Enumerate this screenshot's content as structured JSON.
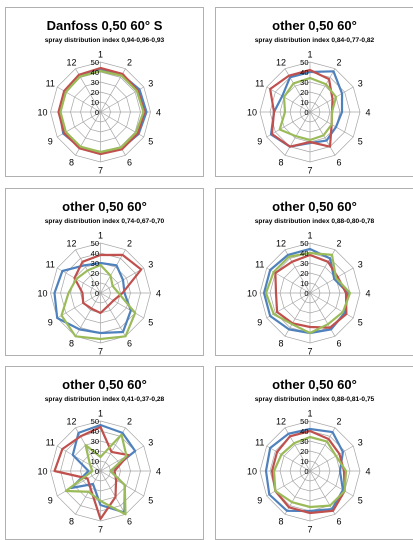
{
  "colors": {
    "blue": "#4f81bd",
    "red": "#c0504d",
    "green": "#9bbb59",
    "grid": "#a6a6a6"
  },
  "chart_data": [
    {
      "type": "radar",
      "title": "Danfoss 0,50 60° S",
      "subtitle": "spray distribution index 0,94-0,96-0,93",
      "categories": [
        "1",
        "2",
        "3",
        "4",
        "5",
        "6",
        "7",
        "8",
        "9",
        "10",
        "11",
        "12"
      ],
      "axis_ticks": [
        "0",
        "10",
        "20",
        "30",
        "40",
        "50"
      ],
      "rlim": [
        0,
        50
      ],
      "series": [
        {
          "color": "blue",
          "values": [
            42,
            43,
            45,
            46,
            44,
            42,
            40,
            41,
            43,
            41,
            40,
            42
          ]
        },
        {
          "color": "red",
          "values": [
            44,
            44,
            43,
            44,
            43,
            43,
            42,
            42,
            42,
            42,
            42,
            43
          ]
        },
        {
          "color": "green",
          "values": [
            41,
            42,
            42,
            43,
            41,
            41,
            40,
            40,
            40,
            40,
            40,
            41
          ]
        }
      ]
    },
    {
      "type": "radar",
      "title": "other 0,50 60°",
      "subtitle": "spray distribution index 0,84-0,77-0,82",
      "categories": [
        "1",
        "2",
        "3",
        "4",
        "5",
        "6",
        "7",
        "8",
        "9",
        "10",
        "11",
        "12"
      ],
      "axis_ticks": [
        "0",
        "10",
        "20",
        "30",
        "40",
        "50"
      ],
      "rlim": [
        0,
        50
      ],
      "series": [
        {
          "color": "blue",
          "values": [
            40,
            47,
            37,
            32,
            30,
            33,
            31,
            40,
            45,
            36,
            32,
            40
          ]
        },
        {
          "color": "red",
          "values": [
            42,
            38,
            26,
            22,
            25,
            40,
            30,
            40,
            44,
            36,
            46,
            42
          ]
        },
        {
          "color": "green",
          "values": [
            34,
            32,
            30,
            22,
            25,
            27,
            28,
            28,
            35,
            25,
            30,
            33
          ]
        }
      ]
    },
    {
      "type": "radar",
      "title": "other 0,50 60°",
      "subtitle": "spray distribution index 0,74-0,67-0,70",
      "categories": [
        "1",
        "2",
        "3",
        "4",
        "5",
        "6",
        "7",
        "8",
        "9",
        "10",
        "11",
        "12"
      ],
      "axis_ticks": [
        "0",
        "10",
        "20",
        "30",
        "40",
        "50"
      ],
      "rlim": [
        0,
        50
      ],
      "series": [
        {
          "color": "blue",
          "values": [
            30,
            32,
            26,
            24,
            35,
            45,
            40,
            42,
            50,
            46,
            44,
            32
          ]
        },
        {
          "color": "red",
          "values": [
            38,
            44,
            47,
            22,
            15,
            15,
            20,
            18,
            20,
            18,
            30,
            36
          ]
        },
        {
          "color": "green",
          "values": [
            28,
            20,
            14,
            18,
            40,
            50,
            46,
            50,
            45,
            32,
            28,
            26
          ]
        }
      ]
    },
    {
      "type": "radar",
      "title": "other 0,50 60°",
      "subtitle": "spray distribution index 0,88-0,80-0,78",
      "categories": [
        "1",
        "2",
        "3",
        "4",
        "5",
        "6",
        "7",
        "8",
        "9",
        "10",
        "11",
        "12"
      ],
      "axis_ticks": [
        "0",
        "10",
        "20",
        "30",
        "40",
        "50"
      ],
      "rlim": [
        0,
        50
      ],
      "series": [
        {
          "color": "blue",
          "values": [
            44,
            40,
            28,
            38,
            40,
            42,
            40,
            42,
            46,
            46,
            46,
            44
          ]
        },
        {
          "color": "red",
          "values": [
            38,
            36,
            32,
            36,
            42,
            40,
            34,
            35,
            38,
            34,
            40,
            36
          ]
        },
        {
          "color": "green",
          "values": [
            40,
            44,
            30,
            40,
            38,
            36,
            40,
            36,
            42,
            44,
            42,
            42
          ]
        }
      ]
    },
    {
      "type": "radar",
      "title": "other 0,50 60°",
      "subtitle": "spray distribution index 0,41-0,37-0,28",
      "categories": [
        "1",
        "2",
        "3",
        "4",
        "5",
        "6",
        "7",
        "8",
        "9",
        "10",
        "11",
        "12"
      ],
      "axis_ticks": [
        "0",
        "10",
        "20",
        "30",
        "40",
        "50"
      ],
      "rlim": [
        0,
        50
      ],
      "series": [
        {
          "color": "blue",
          "values": [
            46,
            44,
            40,
            10,
            28,
            48,
            34,
            15,
            34,
            12,
            32,
            44
          ]
        },
        {
          "color": "red",
          "values": [
            44,
            22,
            32,
            14,
            18,
            30,
            48,
            20,
            15,
            46,
            44,
            40
          ]
        },
        {
          "color": "green",
          "values": [
            14,
            42,
            30,
            10,
            28,
            50,
            30,
            24,
            40,
            8,
            12,
            30
          ]
        }
      ]
    },
    {
      "type": "radar",
      "title": "other 0,50 60°",
      "subtitle": "spray distribution index 0,88-0,81-0,75",
      "categories": [
        "1",
        "2",
        "3",
        "4",
        "5",
        "6",
        "7",
        "8",
        "9",
        "10",
        "11",
        "12"
      ],
      "axis_ticks": [
        "0",
        "10",
        "20",
        "30",
        "40",
        "50"
      ],
      "rlim": [
        0,
        50
      ],
      "series": [
        {
          "color": "blue",
          "values": [
            42,
            45,
            38,
            30,
            38,
            44,
            40,
            46,
            47,
            44,
            46,
            43
          ]
        },
        {
          "color": "red",
          "values": [
            40,
            37,
            34,
            34,
            40,
            46,
            42,
            42,
            40,
            38,
            38,
            40
          ]
        },
        {
          "color": "green",
          "values": [
            34,
            34,
            30,
            36,
            40,
            40,
            36,
            36,
            40,
            36,
            33,
            32
          ]
        }
      ]
    }
  ]
}
